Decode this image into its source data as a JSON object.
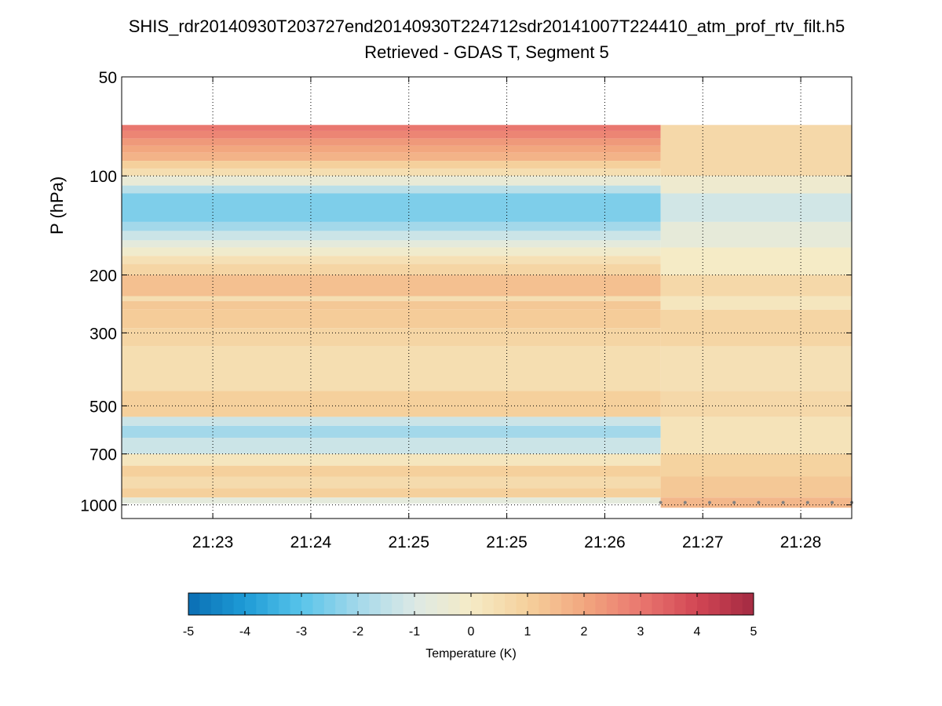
{
  "chart_data": {
    "type": "heatmap",
    "title": "SHIS_rdr20140930T203727end20140930T224712sdr20141007T224410_atm_prof_rtv_filt.h5",
    "subtitle": "Retrieved - GDAS T, Segment 5",
    "ylabel": "P (hPa)",
    "y_scale": "log",
    "y_reversed": true,
    "ylim": [
      50,
      1100
    ],
    "y_ticks": [
      50,
      100,
      200,
      300,
      500,
      700,
      1000
    ],
    "y_tick_labels": [
      "50",
      "100",
      "200",
      "300",
      "500",
      "700",
      "1000"
    ],
    "xlim": [
      0,
      7.45
    ],
    "x_ticks": [
      0.93,
      1.93,
      2.93,
      3.93,
      4.93,
      5.93,
      6.93
    ],
    "x_tick_labels": [
      "21:23",
      "21:24",
      "21:25",
      "21:25",
      "21:26",
      "21:27",
      "21:28"
    ],
    "grid": "dotted",
    "segment_a": {
      "x_range": [
        0,
        5.5
      ],
      "rows": [
        {
          "p_top": 70,
          "p_bot": 73,
          "value": 3.0
        },
        {
          "p_top": 73,
          "p_bot": 77,
          "value": 2.7
        },
        {
          "p_top": 77,
          "p_bot": 81,
          "value": 2.3
        },
        {
          "p_top": 81,
          "p_bot": 85,
          "value": 2.0
        },
        {
          "p_top": 85,
          "p_bot": 90,
          "value": 1.7
        },
        {
          "p_top": 90,
          "p_bot": 95,
          "value": 1.0
        },
        {
          "p_top": 95,
          "p_bot": 100,
          "value": 0.5
        },
        {
          "p_top": 100,
          "p_bot": 107,
          "value": -0.5
        },
        {
          "p_top": 107,
          "p_bot": 113,
          "value": -1.6
        },
        {
          "p_top": 113,
          "p_bot": 138,
          "value": -2.5
        },
        {
          "p_top": 138,
          "p_bot": 147,
          "value": -2.0
        },
        {
          "p_top": 147,
          "p_bot": 157,
          "value": -1.3
        },
        {
          "p_top": 157,
          "p_bot": 165,
          "value": -0.7
        },
        {
          "p_top": 165,
          "p_bot": 175,
          "value": -0.2
        },
        {
          "p_top": 175,
          "p_bot": 185,
          "value": 0.4
        },
        {
          "p_top": 185,
          "p_bot": 200,
          "value": 0.8
        },
        {
          "p_top": 200,
          "p_bot": 232,
          "value": 1.4
        },
        {
          "p_top": 232,
          "p_bot": 240,
          "value": 0.5
        },
        {
          "p_top": 240,
          "p_bot": 255,
          "value": 1.2
        },
        {
          "p_top": 255,
          "p_bot": 290,
          "value": 1.1
        },
        {
          "p_top": 290,
          "p_bot": 330,
          "value": 0.8
        },
        {
          "p_top": 330,
          "p_bot": 450,
          "value": 0.5
        },
        {
          "p_top": 450,
          "p_bot": 540,
          "value": 1.0
        },
        {
          "p_top": 540,
          "p_bot": 575,
          "value": -1.3
        },
        {
          "p_top": 575,
          "p_bot": 625,
          "value": -2.0
        },
        {
          "p_top": 625,
          "p_bot": 700,
          "value": -1.3
        },
        {
          "p_top": 700,
          "p_bot": 760,
          "value": 0.2
        },
        {
          "p_top": 760,
          "p_bot": 820,
          "value": 1.0
        },
        {
          "p_top": 820,
          "p_bot": 890,
          "value": 0.6
        },
        {
          "p_top": 890,
          "p_bot": 950,
          "value": 1.0
        },
        {
          "p_top": 950,
          "p_bot": 990,
          "value": -0.7
        }
      ]
    },
    "segment_b": {
      "x_range": [
        5.5,
        7.45
      ],
      "rows": [
        {
          "p_top": 70,
          "p_bot": 100,
          "value": 0.7
        },
        {
          "p_top": 100,
          "p_bot": 113,
          "value": -0.3
        },
        {
          "p_top": 113,
          "p_bot": 138,
          "value": -1.2
        },
        {
          "p_top": 138,
          "p_bot": 165,
          "value": -0.6
        },
        {
          "p_top": 165,
          "p_bot": 200,
          "value": 0.0
        },
        {
          "p_top": 200,
          "p_bot": 232,
          "value": 0.7
        },
        {
          "p_top": 232,
          "p_bot": 255,
          "value": 0.2
        },
        {
          "p_top": 255,
          "p_bot": 330,
          "value": 0.8
        },
        {
          "p_top": 330,
          "p_bot": 450,
          "value": 0.4
        },
        {
          "p_top": 450,
          "p_bot": 540,
          "value": 0.7
        },
        {
          "p_top": 540,
          "p_bot": 700,
          "value": 0.3
        },
        {
          "p_top": 700,
          "p_bot": 820,
          "value": 0.9
        },
        {
          "p_top": 820,
          "p_bot": 950,
          "value": 1.2
        },
        {
          "p_top": 950,
          "p_bot": 1020,
          "value": 1.6
        }
      ]
    },
    "surface_marker_pressure": 1000,
    "surface_marker_x": [
      5.5,
      5.75,
      6.0,
      6.25,
      6.5,
      6.75,
      7.0,
      7.25,
      7.45
    ],
    "colorbar": {
      "label": "Temperature (K)",
      "range": [
        -5,
        5
      ],
      "ticks": [
        "-5",
        "-4",
        "-3",
        "-2",
        "-1",
        "0",
        "1",
        "2",
        "3",
        "4",
        "5"
      ]
    }
  },
  "colors": {
    "cmap": [
      "#0a6eb4",
      "#1e9bd6",
      "#58c4ea",
      "#a3d8ea",
      "#dce9e5",
      "#f5ebc6",
      "#f5d09c",
      "#f2a77f",
      "#e9776f",
      "#d24654",
      "#a32a42"
    ],
    "grid": "#000000",
    "surface_marker": "#808080"
  }
}
